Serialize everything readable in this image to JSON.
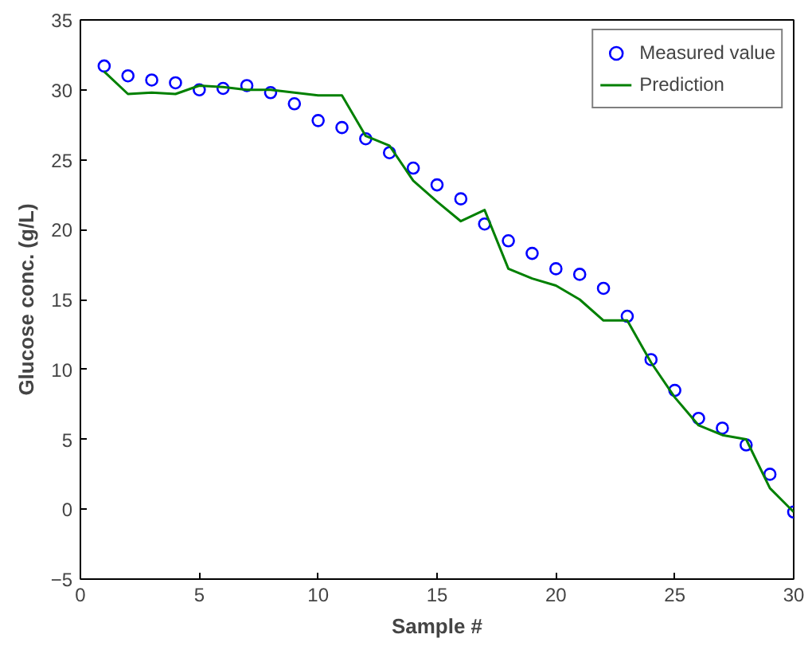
{
  "chart_data": {
    "type": "scatter",
    "xlabel": "Sample #",
    "ylabel": "Glucose conc. (g/L)",
    "x": [
      1,
      2,
      3,
      4,
      5,
      6,
      7,
      8,
      9,
      10,
      11,
      12,
      13,
      14,
      15,
      16,
      17,
      18,
      19,
      20,
      21,
      22,
      23,
      24,
      25,
      26,
      27,
      28,
      29,
      30
    ],
    "series": [
      {
        "name": "Measured value",
        "marker": "circle",
        "color": "#0000ff",
        "values": [
          31.7,
          31.0,
          30.7,
          30.5,
          30.0,
          30.1,
          30.3,
          29.8,
          29.0,
          27.8,
          27.3,
          26.5,
          25.5,
          24.4,
          23.2,
          22.2,
          20.4,
          19.2,
          18.3,
          17.2,
          16.8,
          15.8,
          13.8,
          10.7,
          8.5,
          6.5,
          5.8,
          4.6,
          2.5,
          -0.2
        ]
      },
      {
        "name": "Prediction",
        "type": "line",
        "marker": "none",
        "color": "#008000",
        "values": [
          31.3,
          29.7,
          29.8,
          29.7,
          30.3,
          30.2,
          30.0,
          30.0,
          29.8,
          29.6,
          29.6,
          26.7,
          26.0,
          23.5,
          22.0,
          20.6,
          21.4,
          17.2,
          16.5,
          16.0,
          15.0,
          13.5,
          13.5,
          10.5,
          8.0,
          6.0,
          5.3,
          5.0,
          1.5,
          -0.2
        ]
      }
    ],
    "xlim": [
      0,
      30
    ],
    "ylim": [
      -5,
      35
    ],
    "xticks": [
      0,
      5,
      10,
      15,
      20,
      25,
      30
    ],
    "yticks": [
      -5,
      0,
      5,
      10,
      15,
      20,
      25,
      30,
      35
    ],
    "grid": false,
    "legend": "top right"
  }
}
